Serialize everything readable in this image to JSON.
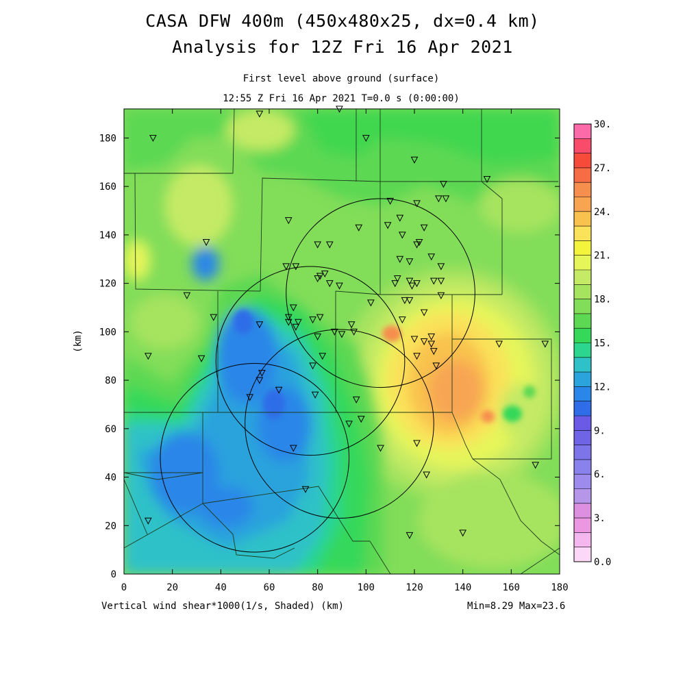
{
  "header": {
    "title_line1": "CASA DFW 400m (450x480x25, dx=0.4 km)",
    "title_line2": "Analysis for 12Z Fri 16 Apr 2021",
    "subtitle_line1": "First level above ground (surface)",
    "subtitle_line2": "12:55 Z Fri 16 Apr 2021   T=0.0 s (0:00:00)"
  },
  "footer": {
    "field_label": "Vertical wind shear*1000(1/s, Shaded)  (km)",
    "minmax": "Min=8.29 Max=23.6"
  },
  "chart_data": {
    "type": "heatmap",
    "xlabel": "",
    "ylabel": "(km)",
    "xlim": [
      0,
      180
    ],
    "ylim": [
      0,
      192
    ],
    "x_ticks": [
      "0",
      "20",
      "40",
      "60",
      "80",
      "100",
      "120",
      "140",
      "160",
      "180"
    ],
    "y_ticks": [
      "0",
      "20",
      "40",
      "60",
      "80",
      "100",
      "120",
      "140",
      "160",
      "180"
    ],
    "colorbar": {
      "range": [
        0,
        30
      ],
      "labels": [
        "0.0",
        "3.",
        "6.",
        "9.",
        "12.",
        "15.",
        "18.",
        "21.",
        "24.",
        "27.",
        "30."
      ],
      "colors": [
        "#fbd8f8",
        "#f4b8ef",
        "#eb97e2",
        "#de90e0",
        "#b696e8",
        "#9d8cec",
        "#8a82ec",
        "#7d74ea",
        "#6f63e6",
        "#6a5ae6",
        "#2f6de8",
        "#2a86e8",
        "#2ba3dd",
        "#2fc1c8",
        "#2cd68e",
        "#36d85a",
        "#5cd853",
        "#82dd59",
        "#a6e35f",
        "#c5ea65",
        "#e5f55a",
        "#f4f43c",
        "#fae25a",
        "#f9c24e",
        "#f8a552",
        "#f68e4e",
        "#f66d45",
        "#f64b3b",
        "#f94c6b",
        "#fb6baa"
      ]
    },
    "peak_values": {
      "min": 8.29,
      "max": 23.6
    },
    "radar_rings": [
      {
        "center": [
          54,
          48
        ],
        "radius_km": 39
      },
      {
        "center": [
          77,
          88
        ],
        "radius_km": 39
      },
      {
        "center": [
          106,
          116
        ],
        "radius_km": 39
      },
      {
        "center": [
          89,
          62
        ],
        "radius_km": 39
      }
    ],
    "stations": [
      [
        12,
        180
      ],
      [
        56,
        190
      ],
      [
        89,
        192
      ],
      [
        100,
        180
      ],
      [
        150,
        163
      ],
      [
        120,
        171
      ],
      [
        132,
        161
      ],
      [
        110,
        154
      ],
      [
        121,
        153
      ],
      [
        130,
        155
      ],
      [
        133,
        155
      ],
      [
        68,
        146
      ],
      [
        97,
        143
      ],
      [
        109,
        144
      ],
      [
        114,
        147
      ],
      [
        115,
        140
      ],
      [
        122,
        137
      ],
      [
        124,
        143
      ],
      [
        121,
        136
      ],
      [
        80,
        136
      ],
      [
        85,
        136
      ],
      [
        34,
        137
      ],
      [
        71,
        127
      ],
      [
        67,
        127
      ],
      [
        80,
        122
      ],
      [
        81,
        123
      ],
      [
        83,
        124
      ],
      [
        85,
        120
      ],
      [
        89,
        119
      ],
      [
        114,
        130
      ],
      [
        118,
        129
      ],
      [
        127,
        131
      ],
      [
        131,
        127
      ],
      [
        113,
        122
      ],
      [
        112,
        120
      ],
      [
        118,
        121
      ],
      [
        119,
        119
      ],
      [
        121,
        120
      ],
      [
        128,
        121
      ],
      [
        131,
        121
      ],
      [
        131,
        115
      ],
      [
        26,
        115
      ],
      [
        37,
        106
      ],
      [
        56,
        103
      ],
      [
        68,
        104
      ],
      [
        68,
        106
      ],
      [
        71,
        102
      ],
      [
        72,
        104
      ],
      [
        78,
        105
      ],
      [
        81,
        106
      ],
      [
        70,
        110
      ],
      [
        116,
        113
      ],
      [
        118,
        113
      ],
      [
        124,
        108
      ],
      [
        102,
        112
      ],
      [
        115,
        105
      ],
      [
        94,
        103
      ],
      [
        95,
        100
      ],
      [
        90,
        99
      ],
      [
        80,
        98
      ],
      [
        87,
        100
      ],
      [
        120,
        97
      ],
      [
        124,
        96
      ],
      [
        127,
        98
      ],
      [
        127,
        95
      ],
      [
        128,
        92
      ],
      [
        121,
        90
      ],
      [
        129,
        86
      ],
      [
        155,
        95
      ],
      [
        174,
        95
      ],
      [
        10,
        90
      ],
      [
        32,
        89
      ],
      [
        82,
        90
      ],
      [
        78,
        86
      ],
      [
        57,
        83
      ],
      [
        56,
        80
      ],
      [
        64,
        76
      ],
      [
        52,
        73
      ],
      [
        79,
        74
      ],
      [
        96,
        72
      ],
      [
        93,
        62
      ],
      [
        98,
        64
      ],
      [
        106,
        52
      ],
      [
        121,
        54
      ],
      [
        70,
        52
      ],
      [
        125,
        41
      ],
      [
        75,
        35
      ],
      [
        10,
        22
      ],
      [
        118,
        16
      ],
      [
        140,
        17
      ],
      [
        170,
        45
      ]
    ]
  }
}
